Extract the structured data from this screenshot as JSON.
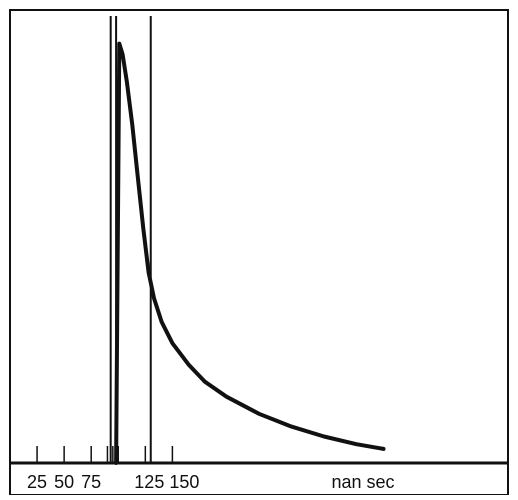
{
  "chart_data": {
    "type": "line",
    "title": "",
    "xlabel": "nan sec",
    "ylabel": "",
    "grid": false,
    "xlim": [
      0,
      460
    ],
    "ylim": [
      0,
      1
    ],
    "tick_labels": [
      "25",
      "50",
      "75",
      "125",
      "150"
    ],
    "ticks": [
      25,
      50,
      75,
      90,
      95,
      100,
      125,
      150
    ],
    "vertical_markers": [
      93,
      98,
      130
    ],
    "series": [
      {
        "values": [
          {
            "x": 98,
            "y": 0.0
          },
          {
            "x": 101,
            "y": 0.98
          },
          {
            "x": 104,
            "y": 0.955
          },
          {
            "x": 108,
            "y": 0.89
          },
          {
            "x": 113,
            "y": 0.79
          },
          {
            "x": 118,
            "y": 0.67
          },
          {
            "x": 123,
            "y": 0.55
          },
          {
            "x": 128,
            "y": 0.445
          },
          {
            "x": 133,
            "y": 0.385
          },
          {
            "x": 140,
            "y": 0.33
          },
          {
            "x": 150,
            "y": 0.28
          },
          {
            "x": 165,
            "y": 0.23
          },
          {
            "x": 180,
            "y": 0.19
          },
          {
            "x": 200,
            "y": 0.155
          },
          {
            "x": 230,
            "y": 0.115
          },
          {
            "x": 260,
            "y": 0.085
          },
          {
            "x": 290,
            "y": 0.062
          },
          {
            "x": 320,
            "y": 0.044
          },
          {
            "x": 345,
            "y": 0.033
          }
        ]
      }
    ]
  },
  "colors": {
    "ink": "#111111",
    "background": "#ffffff"
  }
}
